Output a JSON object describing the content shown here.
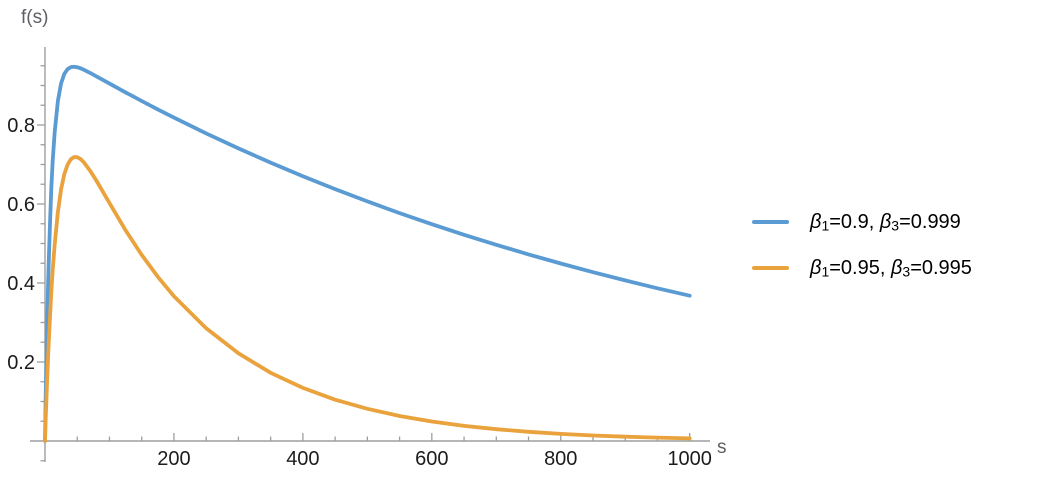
{
  "figure": {
    "y_axis_label": "f(s)",
    "x_axis_label": "s"
  },
  "style": {
    "background": "#ffffff",
    "axis_color": "#9e9e9e",
    "tick_label_color": "#1c1c1c",
    "axis_label_color": "#5e6064",
    "series_blue": "#5b9bd3",
    "series_orange": "#e9a23c"
  },
  "chart_data": {
    "type": "line",
    "title": "",
    "xlabel": "s",
    "ylabel": "f(s)",
    "xlim": [
      0,
      1030
    ],
    "ylim": [
      -0.05,
      1.0
    ],
    "grid": false,
    "legend_position": "right",
    "x_ticks_major": [
      200,
      400,
      600,
      800,
      1000
    ],
    "x_tick_labels": [
      "200",
      "400",
      "600",
      "800",
      "1000"
    ],
    "x_minor_step": 50,
    "y_ticks_major": [
      0.2,
      0.4,
      0.6,
      0.8
    ],
    "y_tick_labels": [
      "0.2",
      "0.4",
      "0.6",
      "0.8"
    ],
    "y_minor_step": 0.05,
    "series": [
      {
        "name": "β₁=0.9, β₃=0.999",
        "color": "#5b9bd3",
        "points": [
          [
            0,
            0
          ],
          [
            1,
            0.0999
          ],
          [
            2,
            0.1896
          ],
          [
            3,
            0.2702
          ],
          [
            4,
            0.3425
          ],
          [
            5,
            0.4075
          ],
          [
            6,
            0.4658
          ],
          [
            8,
            0.565
          ],
          [
            10,
            0.6448
          ],
          [
            12,
            0.709
          ],
          [
            15,
            0.7823
          ],
          [
            20,
            0.861
          ],
          [
            25,
            0.9053
          ],
          [
            30,
            0.9293
          ],
          [
            35,
            0.9414
          ],
          [
            40,
            0.9466
          ],
          [
            45,
            0.9477
          ],
          [
            50,
            0.9463
          ],
          [
            55,
            0.9436
          ],
          [
            60,
            0.9401
          ],
          [
            70,
            0.9318
          ],
          [
            80,
            0.9229
          ],
          [
            100,
            0.9048
          ],
          [
            125,
            0.8825
          ],
          [
            150,
            0.8607
          ],
          [
            175,
            0.8394
          ],
          [
            200,
            0.8187
          ],
          [
            250,
            0.7788
          ],
          [
            300,
            0.7408
          ],
          [
            350,
            0.7047
          ],
          [
            400,
            0.6703
          ],
          [
            450,
            0.6376
          ],
          [
            500,
            0.6065
          ],
          [
            550,
            0.577
          ],
          [
            600,
            0.5488
          ],
          [
            650,
            0.522
          ],
          [
            700,
            0.4966
          ],
          [
            750,
            0.4724
          ],
          [
            800,
            0.4493
          ],
          [
            850,
            0.4274
          ],
          [
            900,
            0.4066
          ],
          [
            950,
            0.3867
          ],
          [
            1000,
            0.3679
          ]
        ]
      },
      {
        "name": "β₁=0.95, β₃=0.995",
        "color": "#e9a23c",
        "points": [
          [
            0,
            0
          ],
          [
            1,
            0.0498
          ],
          [
            2,
            0.0965
          ],
          [
            3,
            0.1405
          ],
          [
            4,
            0.1818
          ],
          [
            5,
            0.2206
          ],
          [
            6,
            0.2571
          ],
          [
            8,
            0.3234
          ],
          [
            10,
            0.3817
          ],
          [
            12,
            0.4328
          ],
          [
            15,
            0.4978
          ],
          [
            20,
            0.5803
          ],
          [
            25,
            0.6375
          ],
          [
            30,
            0.6757
          ],
          [
            35,
            0.6997
          ],
          [
            40,
            0.7132
          ],
          [
            45,
            0.7187
          ],
          [
            50,
            0.7185
          ],
          [
            55,
            0.7138
          ],
          [
            60,
            0.706
          ],
          [
            70,
            0.6844
          ],
          [
            80,
            0.6582
          ],
          [
            100,
            0.6022
          ],
          [
            125,
            0.5334
          ],
          [
            150,
            0.4711
          ],
          [
            175,
            0.4157
          ],
          [
            200,
            0.3667
          ],
          [
            250,
            0.2853
          ],
          [
            300,
            0.222
          ],
          [
            350,
            0.1727
          ],
          [
            400,
            0.1344
          ],
          [
            450,
            0.1046
          ],
          [
            500,
            0.0814
          ],
          [
            550,
            0.0633
          ],
          [
            600,
            0.0493
          ],
          [
            650,
            0.0383
          ],
          [
            700,
            0.0298
          ],
          [
            750,
            0.0232
          ],
          [
            800,
            0.0181
          ],
          [
            850,
            0.014
          ],
          [
            900,
            0.0109
          ],
          [
            950,
            0.0085
          ],
          [
            1000,
            0.0066
          ]
        ]
      }
    ]
  },
  "legend": {
    "items": [
      {
        "color": "#5b9bd3",
        "label": "β₁=0.9, β₃=0.999",
        "parts": [
          {
            "t": "β",
            "italic": true
          },
          {
            "t": "1",
            "sub": true
          },
          {
            "t": "=0.9, "
          },
          {
            "t": "β",
            "italic": true
          },
          {
            "t": "3",
            "sub": true
          },
          {
            "t": "=0.999"
          }
        ]
      },
      {
        "color": "#e9a23c",
        "label": "β₁=0.95, β₃=0.995",
        "parts": [
          {
            "t": "β",
            "italic": true
          },
          {
            "t": "1",
            "sub": true
          },
          {
            "t": "=0.95, "
          },
          {
            "t": "β",
            "italic": true
          },
          {
            "t": "3",
            "sub": true
          },
          {
            "t": "=0.995"
          }
        ]
      }
    ]
  }
}
